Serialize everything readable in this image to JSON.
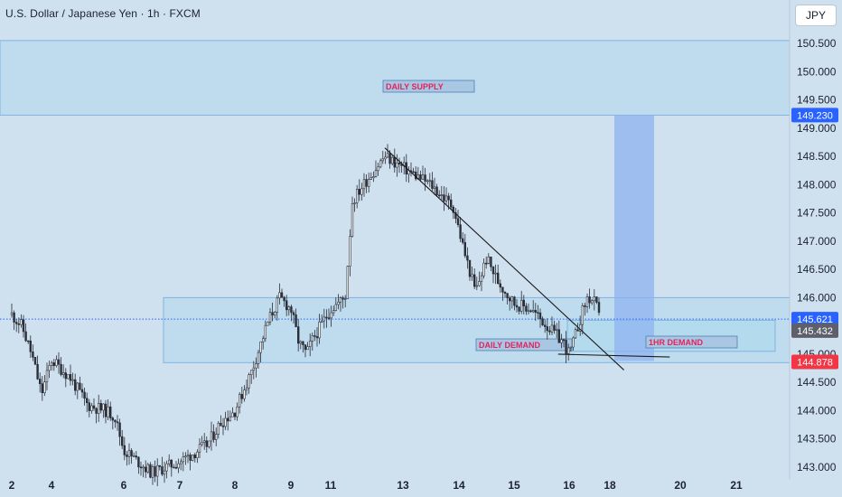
{
  "header": {
    "title": "U.S. Dollar / Japanese Yen · 1h · FXCM",
    "currency_badge": "JPY"
  },
  "colors": {
    "background": "#cfe0ef",
    "zone_fill": "#a8d8ee",
    "zone_border": "#7fb3e0",
    "label_box": "#a9c6e3",
    "label_text": "#e0245e",
    "projection": "#8fb3f0",
    "candle": "#2a2e39",
    "tag_blue": "#2962ff",
    "tag_red": "#f23645",
    "tag_gray": "#5d606b"
  },
  "chart_data": {
    "type": "candlestick",
    "y_axis": {
      "ylim": [
        142.8,
        150.9
      ],
      "ticks": [
        "143.000",
        "143.500",
        "144.000",
        "144.500",
        "145.000",
        "145.500",
        "146.000",
        "146.500",
        "147.000",
        "147.500",
        "148.000",
        "148.500",
        "149.000",
        "149.500",
        "150.000",
        "150.500"
      ]
    },
    "x_axis": {
      "ticks": [
        "2",
        "4",
        "6",
        "7",
        "8",
        "9",
        "11",
        "13",
        "14",
        "15",
        "16",
        "18",
        "20",
        "21"
      ]
    },
    "price_series": [
      [
        "2",
        145.7
      ],
      [
        "2.5",
        145.5
      ],
      [
        "3",
        145.0
      ],
      [
        "3.5",
        144.3
      ],
      [
        "4",
        144.9
      ],
      [
        "4.5",
        144.6
      ],
      [
        "5",
        144.1
      ],
      [
        "5.5",
        144.0
      ],
      [
        "5.75",
        143.9
      ],
      [
        "6",
        143.3
      ],
      [
        "6.5",
        142.9
      ],
      [
        "7",
        143.1
      ],
      [
        "7.5",
        143.4
      ],
      [
        "7.75",
        143.8
      ],
      [
        "8",
        144.0
      ],
      [
        "8.3",
        144.7
      ],
      [
        "8.6",
        145.6
      ],
      [
        "8.8",
        146.0
      ],
      [
        "9",
        145.8
      ],
      [
        "9.4",
        145.2
      ],
      [
        "9.8",
        145.0
      ],
      [
        "10",
        145.2
      ],
      [
        "11",
        145.8
      ],
      [
        "11.4",
        146.0
      ],
      [
        "11.6",
        147.7
      ],
      [
        "11.9",
        148.0
      ],
      [
        "12.5",
        148.5
      ],
      [
        "13",
        148.3
      ],
      [
        "13.5",
        148.0
      ],
      [
        "13.9",
        147.6
      ],
      [
        "14.1",
        146.8
      ],
      [
        "14.3",
        146.1
      ],
      [
        "14.5",
        146.7
      ],
      [
        "14.7",
        146.3
      ],
      [
        "15",
        145.9
      ],
      [
        "15.3",
        145.8
      ],
      [
        "15.6",
        145.5
      ],
      [
        "15.9",
        145.2
      ],
      [
        "16",
        145.0
      ],
      [
        "16.2",
        145.2
      ],
      [
        "16.6",
        145.7
      ],
      [
        "16.9",
        146.0
      ],
      [
        "17.3",
        145.9
      ],
      [
        "17.5",
        145.6
      ]
    ],
    "zones": [
      {
        "name": "DAILY SUPPLY",
        "top": 150.55,
        "bottom": 149.23
      },
      {
        "name": "DAILY DEMAND",
        "top": 146.0,
        "bottom": 144.85
      },
      {
        "name": "1HR DEMAND",
        "top": 145.6,
        "bottom": 145.05
      }
    ],
    "trendline": {
      "from": [
        "12.5",
        148.65
      ],
      "to": [
        "18.4",
        144.72
      ]
    },
    "support_line": {
      "from": [
        "15.8",
        145.0
      ],
      "to": [
        "19.7",
        144.95
      ]
    },
    "projection": {
      "top": 149.23,
      "bottom": 144.88
    },
    "price_tags": [
      {
        "value": "149.230",
        "style": "blue"
      },
      {
        "value": "145.621",
        "style": "blue"
      },
      {
        "value": "145.432",
        "style": "gray"
      },
      {
        "value": "144.878",
        "style": "red"
      }
    ],
    "current_price": 145.621
  }
}
